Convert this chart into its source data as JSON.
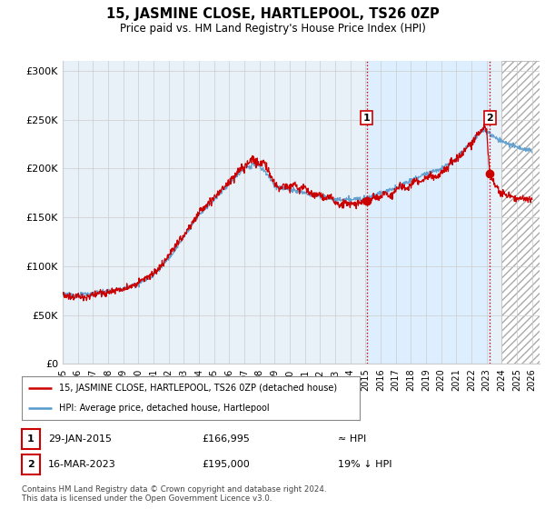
{
  "title": "15, JASMINE CLOSE, HARTLEPOOL, TS26 0ZP",
  "subtitle": "Price paid vs. HM Land Registry's House Price Index (HPI)",
  "ylim": [
    0,
    310000
  ],
  "xlim_start": 1995.0,
  "xlim_end": 2026.5,
  "legend_line1": "15, JASMINE CLOSE, HARTLEPOOL, TS26 0ZP (detached house)",
  "legend_line2": "HPI: Average price, detached house, Hartlepool",
  "annotation1_date": "29-JAN-2015",
  "annotation1_price": "£166,995",
  "annotation1_hpi": "≈ HPI",
  "annotation2_date": "16-MAR-2023",
  "annotation2_price": "£195,000",
  "annotation2_hpi": "19% ↓ HPI",
  "footnote": "Contains HM Land Registry data © Crown copyright and database right 2024.\nThis data is licensed under the Open Government Licence v3.0.",
  "red_color": "#cc0000",
  "blue_color": "#5599cc",
  "light_blue_fill": "#ddeeff",
  "grid_color": "#cccccc",
  "annotation_box_color": "#cc0000",
  "background_color": "#ffffff",
  "sale1_x": 2015.08,
  "sale1_y": 166995,
  "sale2_x": 2023.21,
  "sale2_y": 195000,
  "hatch_start": 2024.0
}
